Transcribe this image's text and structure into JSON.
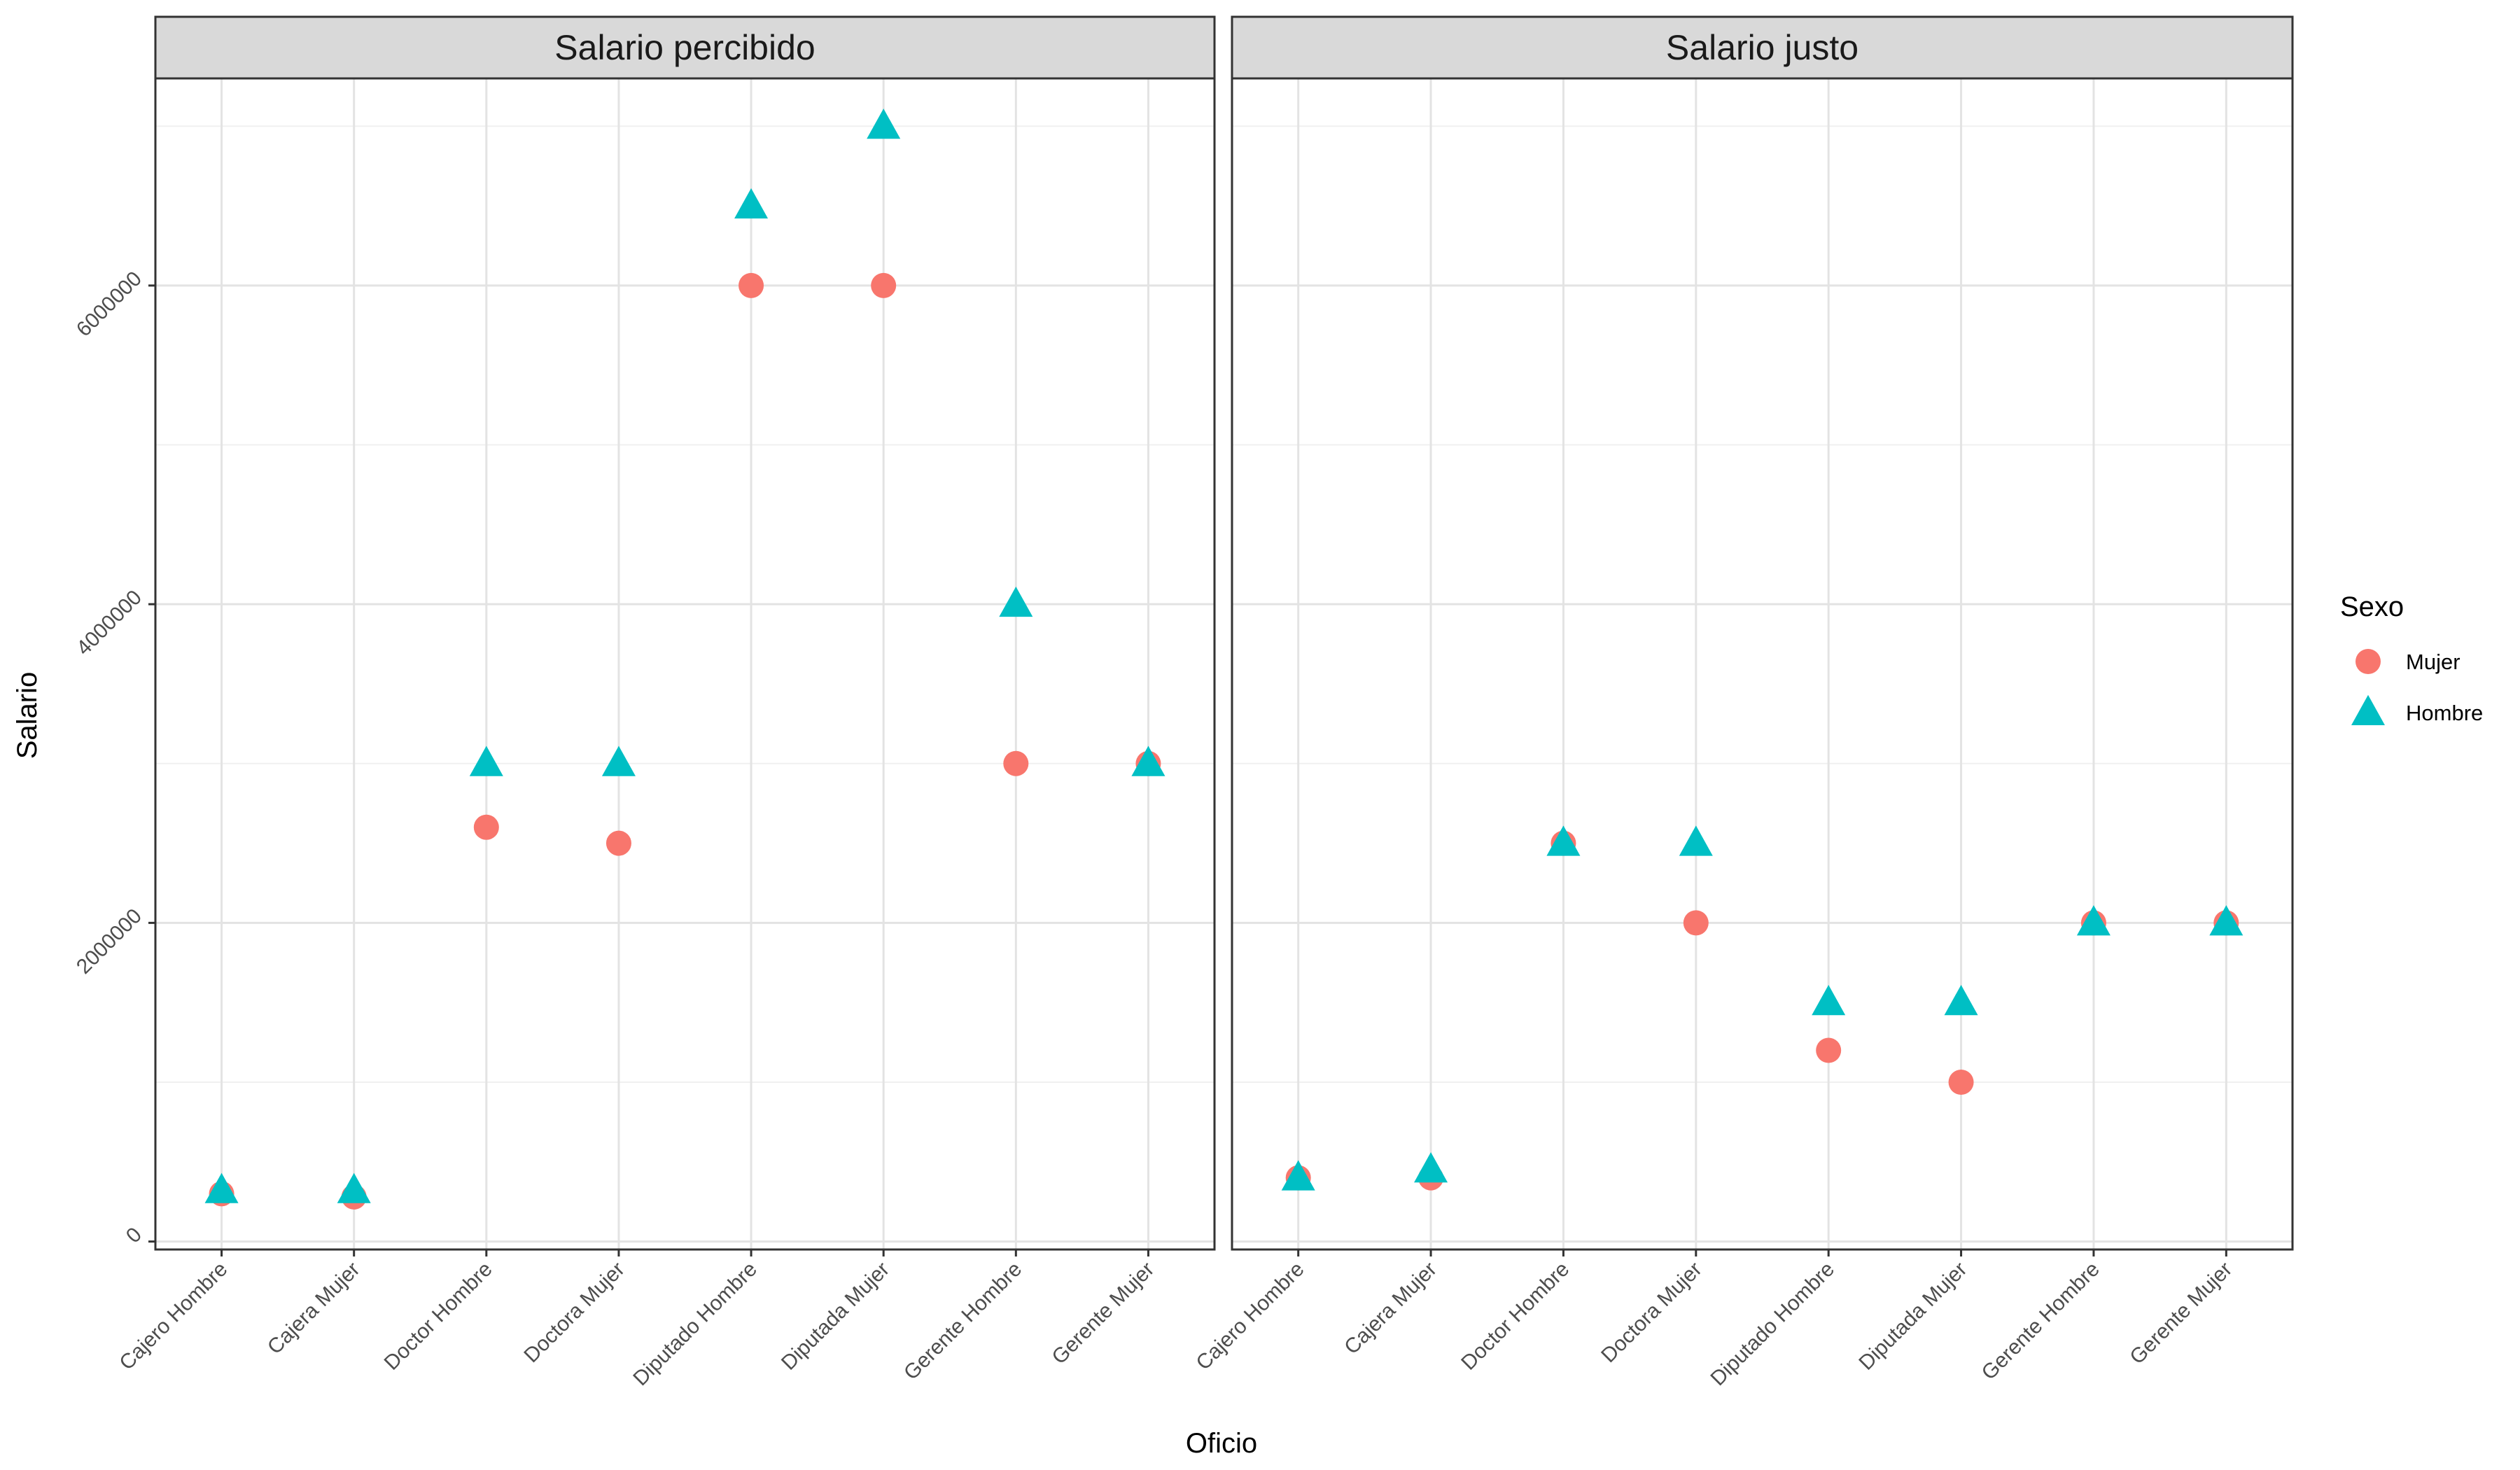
{
  "chart_data": {
    "type": "scatter",
    "xlabel": "Oficio",
    "ylabel": "Salario",
    "legend": {
      "title": "Sexo",
      "placement": "right",
      "entries": [
        {
          "name": "Mujer",
          "color": "#F8766D",
          "shape": "circle"
        },
        {
          "name": "Hombre",
          "color": "#00BFC4",
          "shape": "triangle"
        }
      ]
    },
    "categories": [
      "Cajero Hombre",
      "Cajera Mujer",
      "Doctor Hombre",
      "Doctora Mujer",
      "Diputado Hombre",
      "Diputada Mujer",
      "Gerente Hombre",
      "Gerente Mujer"
    ],
    "ylim": [
      -50000,
      7300000
    ],
    "yticks": [
      0,
      2000000,
      4000000,
      6000000
    ],
    "ytick_labels": [
      "0",
      "2000000",
      "4000000",
      "6000000"
    ],
    "grid": true,
    "panels": [
      {
        "title": "Salario percibido",
        "series": [
          {
            "name": "Mujer",
            "values": [
              300000,
              280000,
              2600000,
              2500000,
              6000000,
              6000000,
              3000000,
              3000000
            ]
          },
          {
            "name": "Hombre",
            "values": [
              320000,
              320000,
              3000000,
              3000000,
              6500000,
              7000000,
              4000000,
              3000000
            ]
          }
        ]
      },
      {
        "title": "Salario justo",
        "series": [
          {
            "name": "Mujer",
            "values": [
              400000,
              400000,
              2500000,
              2000000,
              1200000,
              1000000,
              2000000,
              2000000
            ]
          },
          {
            "name": "Hombre",
            "values": [
              400000,
              450000,
              2500000,
              2500000,
              1500000,
              1500000,
              2000000,
              2000000
            ]
          }
        ]
      }
    ]
  }
}
